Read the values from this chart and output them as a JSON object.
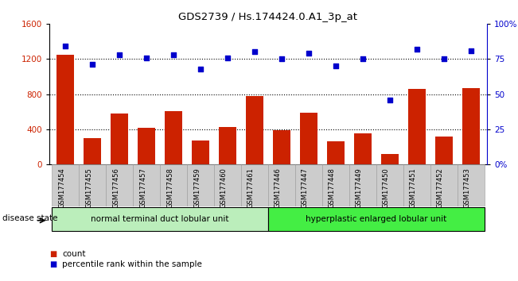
{
  "title": "GDS2739 / Hs.174424.0.A1_3p_at",
  "samples": [
    "GSM177454",
    "GSM177455",
    "GSM177456",
    "GSM177457",
    "GSM177458",
    "GSM177459",
    "GSM177460",
    "GSM177461",
    "GSM177446",
    "GSM177447",
    "GSM177448",
    "GSM177449",
    "GSM177450",
    "GSM177451",
    "GSM177452",
    "GSM177453"
  ],
  "counts": [
    1250,
    300,
    580,
    420,
    610,
    270,
    430,
    780,
    390,
    590,
    265,
    350,
    120,
    860,
    320,
    870
  ],
  "percentiles": [
    84,
    71,
    78,
    76,
    78,
    68,
    76,
    80,
    75,
    79,
    70,
    75,
    46,
    82,
    75,
    81
  ],
  "group1_label": "normal terminal duct lobular unit",
  "group2_label": "hyperplastic enlarged lobular unit",
  "group1_count": 8,
  "group2_count": 8,
  "bar_color": "#cc2200",
  "dot_color": "#0000cc",
  "group1_bg": "#bbeebb",
  "group2_bg": "#44ee44",
  "left_ylim": [
    0,
    1600
  ],
  "right_ylim": [
    0,
    100
  ],
  "left_yticks": [
    0,
    400,
    800,
    1200,
    1600
  ],
  "right_yticks": [
    0,
    25,
    50,
    75,
    100
  ],
  "right_yticklabels": [
    "0%",
    "25",
    "50",
    "75",
    "100%"
  ],
  "grid_values": [
    400,
    800,
    1200
  ],
  "background_color": "#ffffff",
  "tick_bg_color": "#cccccc"
}
